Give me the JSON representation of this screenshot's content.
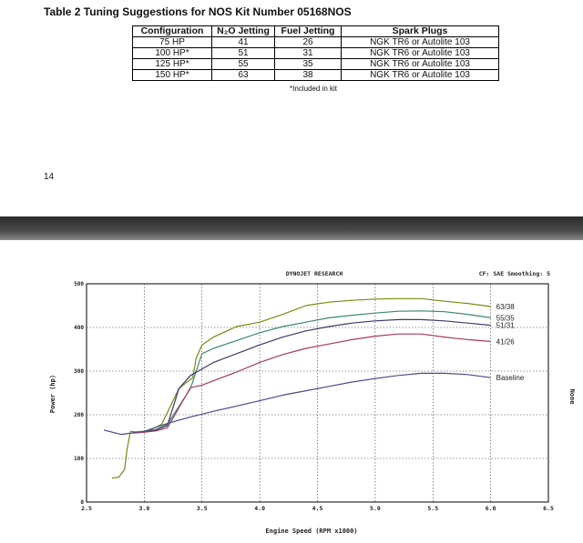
{
  "table": {
    "title": "Table 2  Tuning Suggestions for NOS Kit Number 05168NOS",
    "headers": [
      "Configuration",
      "N₂O Jetting",
      "Fuel Jetting",
      "Spark Plugs"
    ],
    "rows": [
      [
        "75 HP",
        "41",
        "26",
        "NGK TR6 or Autolite 103"
      ],
      [
        "100 HP*",
        "51",
        "31",
        "NGK TR6 or Autolite 103"
      ],
      [
        "125 HP*",
        "55",
        "35",
        "NGK TR6 or Autolite 103"
      ],
      [
        "150 HP*",
        "63",
        "38",
        "NGK TR6 or Autolite 103"
      ]
    ],
    "footnote": "*Included in kit"
  },
  "page_number": "14",
  "chart_data": {
    "type": "line",
    "header_center": "DYNOJET RESEARCH",
    "header_right": "CF: SAE  Smoothing: 5",
    "xlabel": "Engine Speed (RPM x1000)",
    "ylabel": "Power (hp)",
    "right_label": "None",
    "xlim": [
      2.5,
      6.5
    ],
    "ylim": [
      0,
      500
    ],
    "xticks": [
      "2.5",
      "3.0",
      "3.5",
      "4.0",
      "4.5",
      "5.0",
      "5.5",
      "6.0",
      "6.5"
    ],
    "yticks": [
      "0",
      "100",
      "200",
      "300",
      "400",
      "500"
    ],
    "grid": true,
    "series": [
      {
        "name": "63/38",
        "color": "#7a8a10",
        "x": [
          2.72,
          2.78,
          2.83,
          2.85,
          2.88,
          2.95,
          3.05,
          3.15,
          3.3,
          3.42,
          3.45,
          3.5,
          3.6,
          3.8,
          4.0,
          4.2,
          4.4,
          4.6,
          4.8,
          5.0,
          5.2,
          5.4,
          5.6,
          5.8,
          6.0
        ],
        "y": [
          55,
          57,
          75,
          120,
          162,
          160,
          165,
          178,
          260,
          285,
          330,
          360,
          378,
          402,
          412,
          430,
          450,
          458,
          462,
          465,
          466,
          466,
          460,
          455,
          448
        ]
      },
      {
        "name": "55/35",
        "color": "#3a8a6a",
        "x": [
          2.9,
          3.0,
          3.1,
          3.2,
          3.4,
          3.45,
          3.5,
          3.6,
          3.8,
          4.0,
          4.2,
          4.4,
          4.6,
          4.8,
          5.0,
          5.2,
          5.4,
          5.6,
          5.8,
          6.0
        ],
        "y": [
          160,
          162,
          166,
          178,
          260,
          300,
          340,
          352,
          370,
          388,
          402,
          412,
          422,
          428,
          433,
          437,
          438,
          436,
          430,
          422
        ]
      },
      {
        "name": "51/31",
        "color": "#3a3a6a",
        "x": [
          2.9,
          3.0,
          3.1,
          3.2,
          3.3,
          3.4,
          3.5,
          3.6,
          3.8,
          4.0,
          4.2,
          4.4,
          4.6,
          4.8,
          5.0,
          5.2,
          5.4,
          5.6,
          5.8,
          6.0
        ],
        "y": [
          158,
          160,
          165,
          175,
          260,
          290,
          305,
          320,
          340,
          360,
          378,
          392,
          402,
          410,
          415,
          418,
          418,
          415,
          410,
          405
        ]
      },
      {
        "name": "41/26",
        "color": "#a83a5a",
        "x": [
          2.9,
          3.0,
          3.1,
          3.2,
          3.4,
          3.5,
          3.6,
          3.8,
          4.0,
          4.2,
          4.4,
          4.6,
          4.8,
          5.0,
          5.2,
          5.4,
          5.6,
          5.8,
          6.0
        ],
        "y": [
          158,
          160,
          163,
          170,
          262,
          268,
          278,
          298,
          320,
          338,
          352,
          362,
          372,
          380,
          385,
          385,
          378,
          372,
          368
        ]
      },
      {
        "name": "Baseline",
        "color": "#4a4a8a",
        "x": [
          2.65,
          2.8,
          3.0,
          3.2,
          3.4,
          3.6,
          3.8,
          4.0,
          4.2,
          4.4,
          4.6,
          4.8,
          5.0,
          5.2,
          5.4,
          5.6,
          5.8,
          6.0
        ],
        "y": [
          165,
          155,
          162,
          180,
          195,
          208,
          220,
          232,
          245,
          255,
          265,
          275,
          283,
          290,
          295,
          295,
          292,
          285
        ]
      }
    ]
  }
}
